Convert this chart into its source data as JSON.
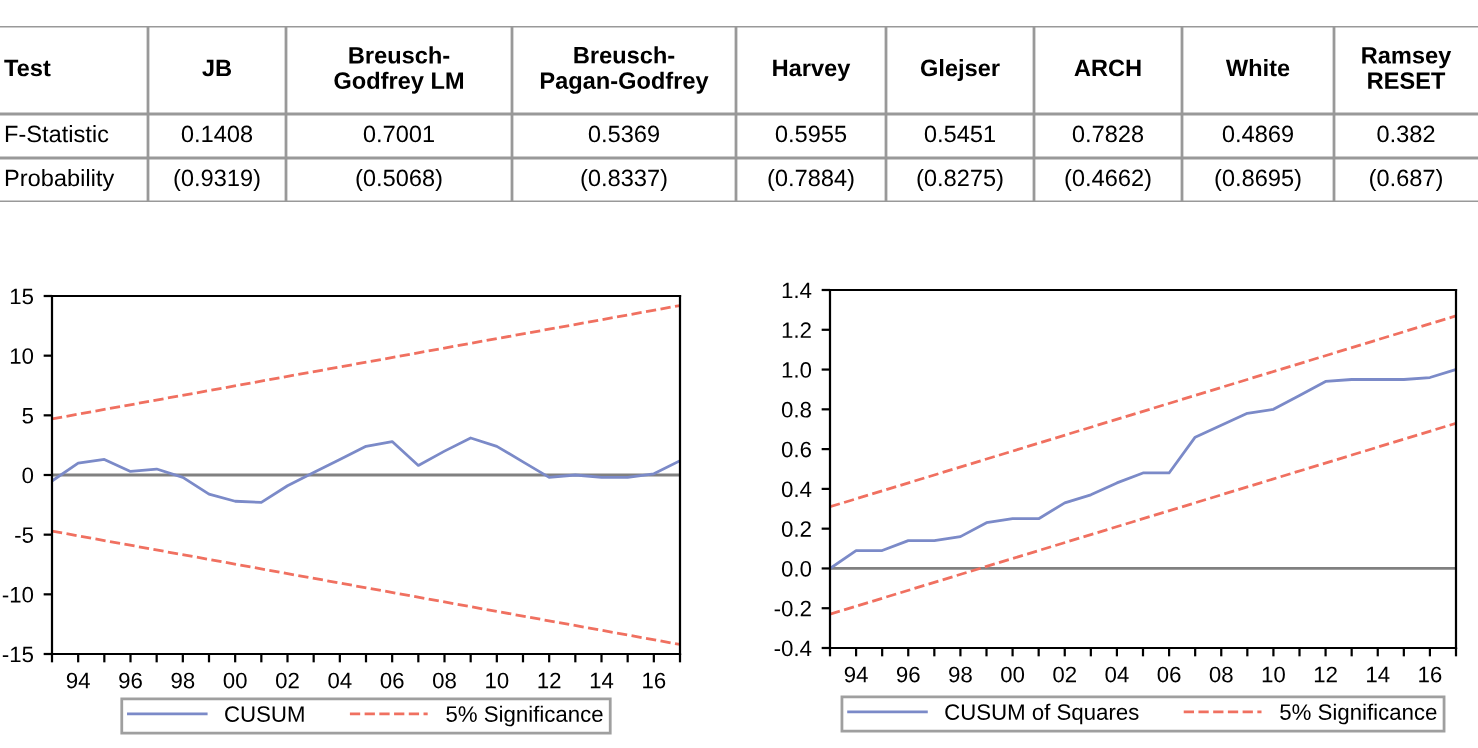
{
  "chart_data": [
    {
      "type": "other",
      "categories": [
        "Test",
        "JB",
        "Breusch-\nGodfrey LM",
        "Breusch-\nPagan-Godfrey",
        "Harvey",
        "Glejser",
        "ARCH",
        "White",
        "Ramsey\nRESET"
      ],
      "cell_labels": [
        [
          "F-Statistic",
          "0.1408",
          "0.7001",
          "0.5369",
          "0.5955",
          "0.5451",
          "0.7828",
          "0.4869",
          "0.382"
        ],
        [
          "Probability",
          "(0.9319)",
          "(0.5068)",
          "(0.8337)",
          "(0.7884)",
          "(0.8275)",
          "(0.4662)",
          "(0.8695)",
          "(0.687)"
        ]
      ]
    },
    {
      "type": "line",
      "xlim": [
        1993,
        2017
      ],
      "ylim": [
        -15,
        15
      ],
      "yticks": [
        {
          "value": -15,
          "label": "-15"
        },
        {
          "value": -10,
          "label": "-10"
        },
        {
          "value": -5,
          "label": "-5"
        },
        0,
        5,
        10,
        15
      ],
      "xticks": [
        {
          "value": 1993,
          "label": null
        },
        {
          "value": 1994,
          "label": "94"
        },
        {
          "value": 1995,
          "label": null
        },
        {
          "value": 1996,
          "label": "96"
        },
        {
          "value": 1997,
          "label": null
        },
        {
          "value": 1998,
          "label": "98"
        },
        {
          "value": 1999,
          "label": null
        },
        {
          "value": 2000,
          "label": "00"
        },
        {
          "value": 2001,
          "label": null
        },
        {
          "value": 2002,
          "label": "02"
        },
        {
          "value": 2003,
          "label": null
        },
        {
          "value": 2004,
          "label": "04"
        },
        {
          "value": 2005,
          "label": null
        },
        {
          "value": 2006,
          "label": "06"
        },
        {
          "value": 2007,
          "label": null
        },
        {
          "value": 2008,
          "label": "08"
        },
        {
          "value": 2009,
          "label": null
        },
        {
          "value": 2010,
          "label": "10"
        },
        {
          "value": 2011,
          "label": null
        },
        {
          "value": 2012,
          "label": "12"
        },
        {
          "value": 2013,
          "label": null
        },
        {
          "value": 2014,
          "label": "14"
        },
        {
          "value": 2015,
          "label": null
        },
        {
          "value": 2016,
          "label": "16"
        },
        {
          "value": 2017,
          "label": null
        }
      ],
      "grid": false,
      "legend": "bottom",
      "ref_lines": [
        {
          "axis": "y",
          "value": 0,
          "label": null,
          "color": "#808080"
        }
      ],
      "series": [
        {
          "name": "CUSUM",
          "color": "#7b8ac8",
          "line_style": "solid",
          "x": [
            1993,
            1994,
            1995,
            1996,
            1997,
            1998,
            1999,
            2000,
            2001,
            2002,
            2003,
            2004,
            2005,
            2006,
            2007,
            2008,
            2009,
            2010,
            2011,
            2012,
            2013,
            2014,
            2015,
            2016,
            2017
          ],
          "values": [
            -0.5,
            1.0,
            1.3,
            0.3,
            0.5,
            -0.2,
            -1.6,
            -2.2,
            -2.3,
            -0.9,
            0.2,
            1.3,
            2.4,
            2.8,
            0.8,
            2.0,
            3.1,
            2.4,
            1.1,
            -0.2,
            0.0,
            -0.2,
            -0.2,
            0.1,
            1.2
          ]
        },
        {
          "name": "5% Significance",
          "color": "#f07060",
          "line_style": "dashed",
          "x": [
            1993,
            2017
          ],
          "values": [
            4.7,
            14.2
          ]
        },
        {
          "color": "#f07060",
          "line_style": "dashed",
          "x": [
            1993,
            2017
          ],
          "values": [
            -4.7,
            -14.2
          ]
        }
      ]
    },
    {
      "type": "line",
      "xlim": [
        1993,
        2017
      ],
      "ylim": [
        -0.4,
        1.4
      ],
      "yticks": [
        {
          "value": -0.4,
          "label": "-0.4"
        },
        {
          "value": -0.2,
          "label": "-0.2"
        },
        {
          "value": 0,
          "label": "0.0"
        },
        {
          "value": 0.2,
          "label": "0.2"
        },
        {
          "value": 0.4,
          "label": "0.4"
        },
        {
          "value": 0.6,
          "label": "0.6"
        },
        {
          "value": 0.8,
          "label": "0.8"
        },
        {
          "value": 1.0,
          "label": "1.0"
        },
        {
          "value": 1.2,
          "label": "1.2"
        },
        {
          "value": 1.4,
          "label": "1.4"
        }
      ],
      "xticks": [
        {
          "value": 1993,
          "label": null
        },
        {
          "value": 1994,
          "label": "94"
        },
        {
          "value": 1995,
          "label": null
        },
        {
          "value": 1996,
          "label": "96"
        },
        {
          "value": 1997,
          "label": null
        },
        {
          "value": 1998,
          "label": "98"
        },
        {
          "value": 1999,
          "label": null
        },
        {
          "value": 2000,
          "label": "00"
        },
        {
          "value": 2001,
          "label": null
        },
        {
          "value": 2002,
          "label": "02"
        },
        {
          "value": 2003,
          "label": null
        },
        {
          "value": 2004,
          "label": "04"
        },
        {
          "value": 2005,
          "label": null
        },
        {
          "value": 2006,
          "label": "06"
        },
        {
          "value": 2007,
          "label": null
        },
        {
          "value": 2008,
          "label": "08"
        },
        {
          "value": 2009,
          "label": null
        },
        {
          "value": 2010,
          "label": "10"
        },
        {
          "value": 2011,
          "label": null
        },
        {
          "value": 2012,
          "label": "12"
        },
        {
          "value": 2013,
          "label": null
        },
        {
          "value": 2014,
          "label": "14"
        },
        {
          "value": 2015,
          "label": null
        },
        {
          "value": 2016,
          "label": "16"
        },
        {
          "value": 2017,
          "label": null
        }
      ],
      "grid": false,
      "legend": "bottom",
      "ref_lines": [
        {
          "axis": "y",
          "value": 0,
          "label": null,
          "color": "#808080"
        }
      ],
      "series": [
        {
          "name": "CUSUM of Squares",
          "color": "#7b8ac8",
          "line_style": "solid",
          "x": [
            1993,
            1994,
            1995,
            1996,
            1997,
            1998,
            1999,
            2000,
            2001,
            2002,
            2003,
            2004,
            2005,
            2006,
            2007,
            2008,
            2009,
            2010,
            2011,
            2012,
            2013,
            2014,
            2015,
            2016,
            2017
          ],
          "values": [
            0.0,
            0.09,
            0.09,
            0.14,
            0.14,
            0.16,
            0.23,
            0.25,
            0.25,
            0.33,
            0.37,
            0.43,
            0.48,
            0.48,
            0.66,
            0.72,
            0.78,
            0.8,
            0.87,
            0.94,
            0.95,
            0.95,
            0.95,
            0.96,
            1.0
          ]
        },
        {
          "name": "5% Significance",
          "color": "#f07060",
          "line_style": "dashed",
          "x": [
            1993,
            2017
          ],
          "values": [
            0.31,
            1.27
          ]
        },
        {
          "color": "#f07060",
          "line_style": "dashed",
          "x": [
            1993,
            2017
          ],
          "values": [
            -0.23,
            0.73
          ]
        }
      ]
    }
  ]
}
